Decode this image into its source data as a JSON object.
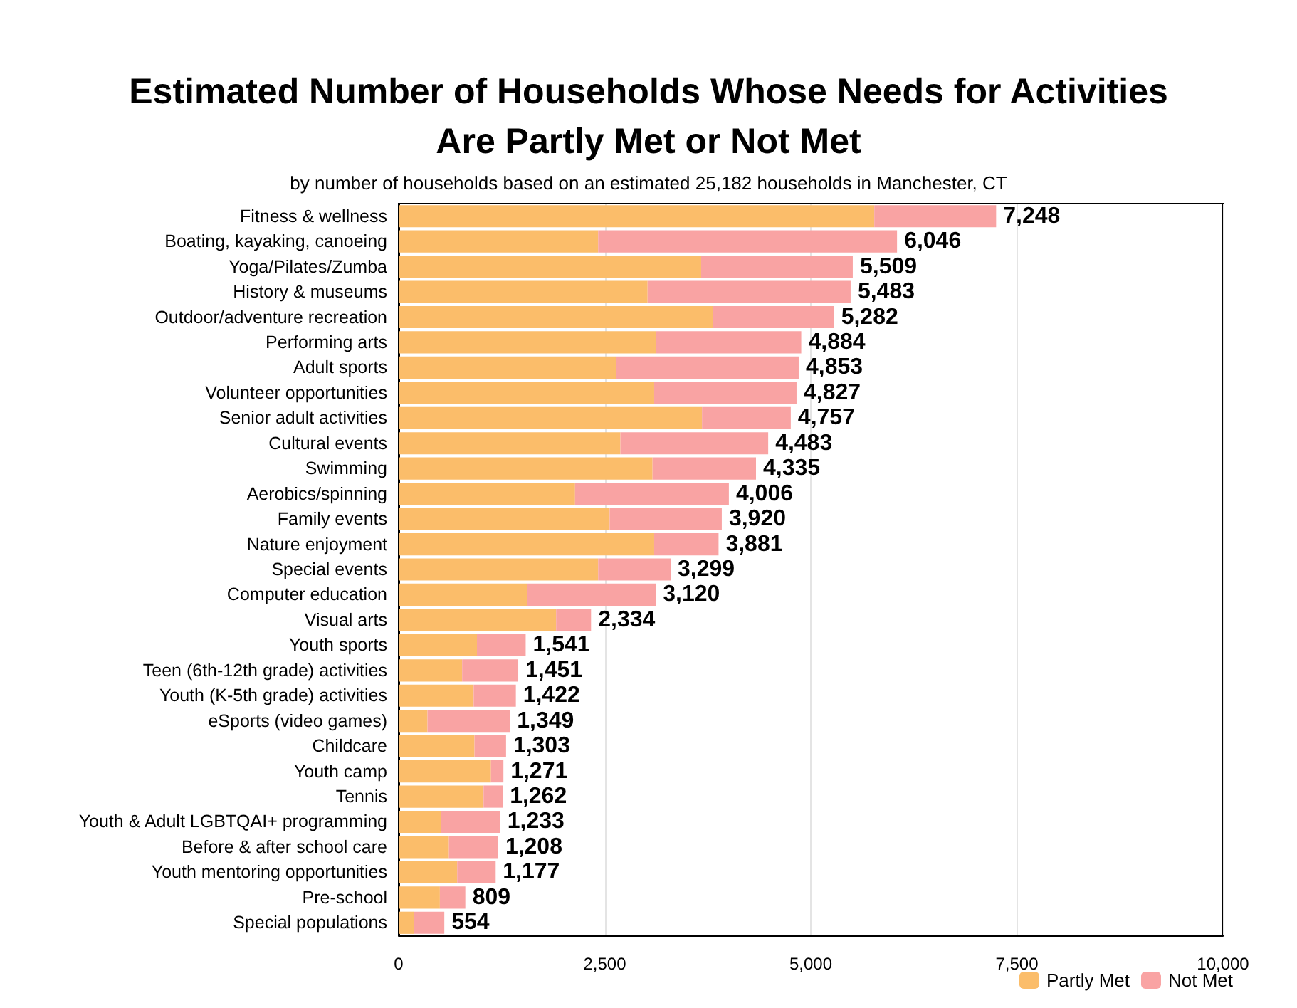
{
  "chart_data": {
    "type": "bar",
    "orientation": "horizontal",
    "stacked": true,
    "title": "Estimated Number of Households Whose Needs for Activities\nAre Partly Met or Not Met",
    "subtitle": "by number of households based on an estimated 25,182 households in Manchester, CT",
    "categories": [
      "Fitness & wellness",
      "Boating, kayaking, canoeing",
      "Yoga/Pilates/Zumba",
      "History & museums",
      "Outdoor/adventure recreation",
      "Performing arts",
      "Adult sports",
      "Volunteer opportunities",
      "Senior adult activities",
      "Cultural events",
      "Swimming",
      "Aerobics/spinning",
      "Family events",
      "Nature enjoyment",
      "Special events",
      "Computer education",
      "Visual arts",
      "Youth sports",
      "Teen (6th-12th grade) activities",
      "Youth (K-5th grade) activities",
      "eSports (video games)",
      "Childcare",
      "Youth camp",
      "Tennis",
      "Youth & Adult LGBTQAI+ programming",
      "Before & after school care",
      "Youth mentoring opportunities",
      "Pre-school",
      "Special populations"
    ],
    "series": [
      {
        "name": "Partly Met",
        "color": "#fbbd6a",
        "values": [
          5770,
          2420,
          3670,
          3020,
          3810,
          3120,
          2640,
          3100,
          3680,
          2690,
          3080,
          2140,
          2560,
          3100,
          2420,
          1560,
          1910,
          950,
          770,
          910,
          350,
          920,
          1120,
          1030,
          510,
          610,
          710,
          500,
          190
        ]
      },
      {
        "name": "Not Met",
        "color": "#f9a3a3",
        "values": [
          1478,
          3626,
          1839,
          2463,
          1472,
          1764,
          2213,
          1727,
          1077,
          1793,
          1255,
          1866,
          1360,
          781,
          879,
          1560,
          424,
          591,
          681,
          512,
          999,
          383,
          151,
          232,
          723,
          598,
          467,
          309,
          364
        ]
      }
    ],
    "totals": [
      "7,248",
      "6,046",
      "5,509",
      "5,483",
      "5,282",
      "4,884",
      "4,853",
      "4,827",
      "4,757",
      "4,483",
      "4,335",
      "4,006",
      "3,920",
      "3,881",
      "3,299",
      "3,120",
      "2,334",
      "1,541",
      "1,451",
      "1,422",
      "1,349",
      "1,303",
      "1,271",
      "1,262",
      "1,233",
      "1,208",
      "1,177",
      "809",
      "554"
    ],
    "xlim": [
      0,
      10000
    ],
    "xticks": [
      {
        "value": 0,
        "label": "0"
      },
      {
        "value": 2500,
        "label": "2,500"
      },
      {
        "value": 5000,
        "label": "5,000"
      },
      {
        "value": 7500,
        "label": "7,500"
      },
      {
        "value": 10000,
        "label": "10,000"
      }
    ],
    "grid": "x",
    "legend": "bottom right"
  }
}
